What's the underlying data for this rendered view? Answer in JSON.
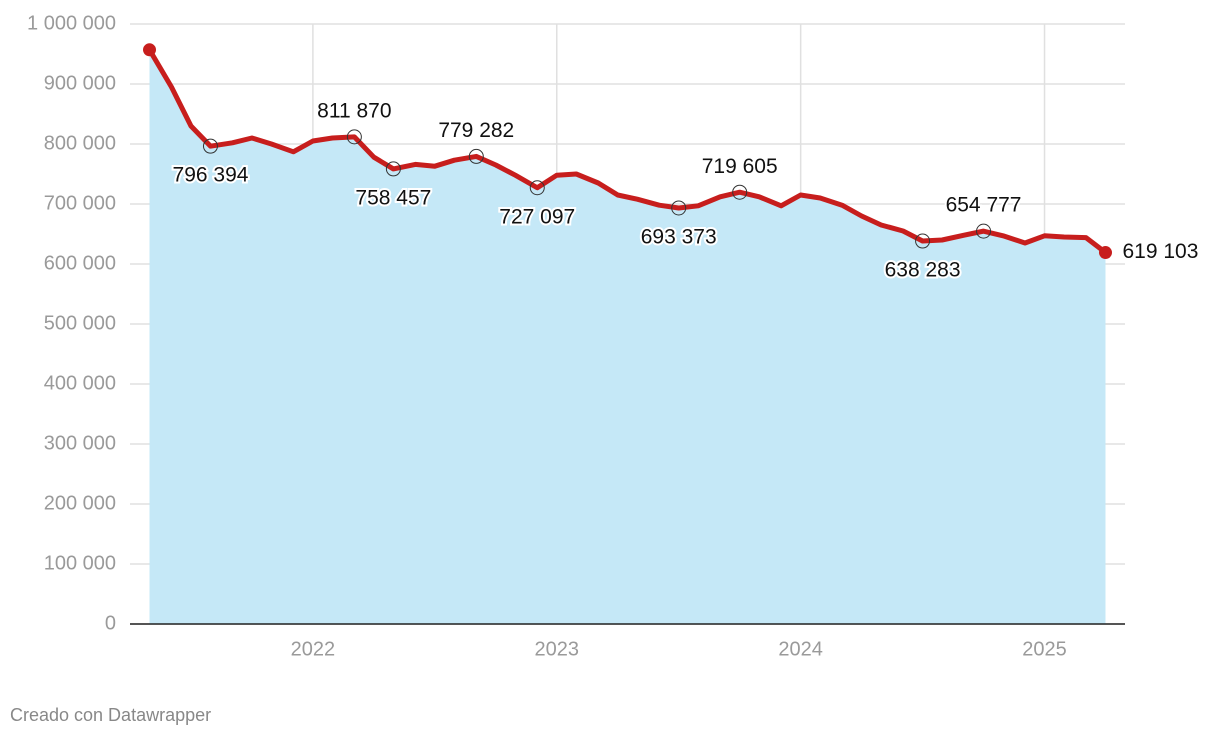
{
  "chart_data": {
    "type": "area",
    "x": [
      2021.33,
      2021.42,
      2021.5,
      2021.58,
      2021.67,
      2021.75,
      2021.83,
      2021.92,
      2022,
      2022.08,
      2022.17,
      2022.25,
      2022.33,
      2022.42,
      2022.5,
      2022.58,
      2022.67,
      2022.75,
      2022.83,
      2022.92,
      2023,
      2023.08,
      2023.17,
      2023.25,
      2023.33,
      2023.42,
      2023.5,
      2023.58,
      2023.67,
      2023.75,
      2023.83,
      2023.92,
      2024,
      2024.08,
      2024.17,
      2024.25,
      2024.33,
      2024.42,
      2024.5,
      2024.58,
      2024.67,
      2024.75,
      2024.83,
      2024.92,
      2025,
      2025.08,
      2025.17,
      2025.25
    ],
    "values": [
      957000,
      895000,
      830000,
      796394,
      802000,
      810000,
      800000,
      787000,
      805000,
      810000,
      811870,
      778000,
      758457,
      766000,
      763000,
      773000,
      779282,
      765000,
      748000,
      727097,
      748000,
      750000,
      735000,
      715000,
      708000,
      698000,
      693373,
      697000,
      712000,
      719605,
      712000,
      697000,
      715000,
      710000,
      698000,
      680000,
      665000,
      655000,
      638283,
      640000,
      648000,
      654777,
      647000,
      635000,
      647000,
      645000,
      644000,
      619103
    ],
    "value_labels": [
      null,
      null,
      null,
      "796 394",
      null,
      null,
      null,
      null,
      null,
      null,
      "811 870",
      null,
      "758 457",
      null,
      null,
      null,
      "779 282",
      null,
      null,
      "727 097",
      null,
      null,
      null,
      null,
      null,
      null,
      "693 373",
      null,
      null,
      "719 605",
      null,
      null,
      null,
      null,
      null,
      null,
      null,
      null,
      "638 283",
      null,
      null,
      "654 777",
      null,
      null,
      null,
      null,
      null,
      "619 103"
    ],
    "color": "#c71e1d",
    "fill_color": "#c5e8f7",
    "xlim": [
      2021.25,
      2025.33
    ],
    "xticks": [
      2022,
      2023,
      2024,
      2025
    ],
    "ylim": [
      0,
      1000000
    ],
    "yticks": [
      0,
      {
        "value": 100000,
        "label": "100 000"
      },
      {
        "value": 200000,
        "label": "200 000"
      },
      {
        "value": 300000,
        "label": "300 000"
      },
      {
        "value": 400000,
        "label": "400 000"
      },
      {
        "value": 500000,
        "label": "500 000"
      },
      {
        "value": 600000,
        "label": "600 000"
      },
      {
        "value": 700000,
        "label": "700 000"
      },
      {
        "value": 800000,
        "label": "800 000"
      },
      {
        "value": 900000,
        "label": "900 000"
      },
      {
        "value": 1000000,
        "label": "1 000 000"
      }
    ],
    "grid": true,
    "credit": "Creado con Datawrapper"
  }
}
